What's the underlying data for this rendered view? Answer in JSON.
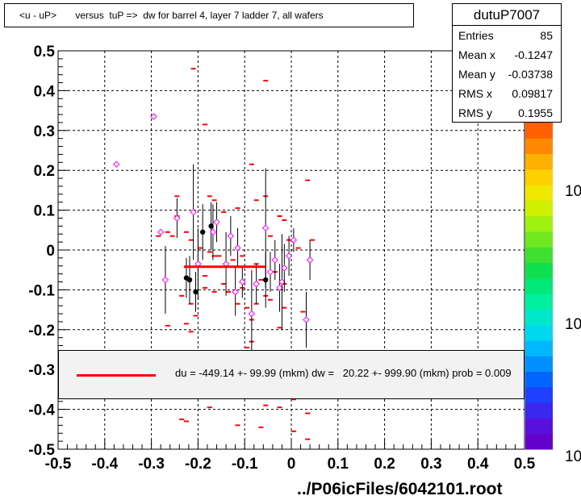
{
  "title": "<u - uP>       versus  tuP =>  dw for barrel 4, layer 7 ladder 7, all wafers",
  "stats": {
    "name": "dutuP7007",
    "rows": [
      {
        "label": "Entries",
        "value": "85"
      },
      {
        "label": "Mean x",
        "value": "-0.1247"
      },
      {
        "label": "Mean y",
        "value": "-0.03738"
      },
      {
        "label": "RMS x",
        "value": "0.09817"
      },
      {
        "label": "RMS y",
        "value": "0.1955"
      }
    ]
  },
  "fit_text": "du = -449.14 +- 99.99 (mkm) dw =   20.22 +- 999.90 (mkm) prob = 0.009",
  "footer": "../P06icFiles/6042101.root",
  "colorbar_labels": [
    "10",
    "10",
    "10"
  ],
  "chart_data": {
    "type": "scatter",
    "xlim": [
      -0.5,
      0.5
    ],
    "ylim": [
      -0.5,
      0.5
    ],
    "x_ticks": [
      "-0.5",
      "-0.4",
      "-0.3",
      "-0.2",
      "-0.1",
      "0",
      "0.1",
      "0.2",
      "0.3",
      "0.4",
      "0.5"
    ],
    "y_ticks": [
      "-0.5",
      "-0.4",
      "-0.3",
      "-0.2",
      "-0.1",
      "0",
      "0.1",
      "0.2",
      "0.3",
      "0.4",
      "0.5"
    ],
    "grid": true,
    "colors": {
      "marks": "#ff0000",
      "profile": "#ff00ff",
      "fit": "#ff0000",
      "axis": "#000000"
    },
    "fit_segment": {
      "x": [
        -0.23,
        -0.055
      ],
      "y": [
        -0.042,
        -0.042
      ]
    },
    "red_marks": [
      [
        -0.295,
        0.335
      ],
      [
        -0.245,
        0.135
      ],
      [
        -0.245,
        0.085
      ],
      [
        -0.225,
        0.045
      ],
      [
        -0.21,
        0.455
      ],
      [
        -0.185,
        0.315
      ],
      [
        -0.175,
        0.135
      ],
      [
        -0.165,
        0.125
      ],
      [
        -0.145,
        0.095
      ],
      [
        -0.115,
        0.105
      ],
      [
        -0.085,
        0.215
      ],
      [
        -0.075,
        0.125
      ],
      [
        -0.055,
        0.425
      ],
      [
        -0.055,
        0.135
      ],
      [
        -0.045,
        0.035
      ],
      [
        -0.025,
        0.085
      ],
      [
        -0.015,
        0.075
      ],
      [
        0.035,
        0.175
      ],
      [
        -0.265,
        0.045
      ],
      [
        -0.255,
        0.035
      ],
      [
        -0.285,
        0.035
      ],
      [
        -0.215,
        0.025
      ],
      [
        -0.195,
        0.005
      ],
      [
        -0.175,
        -0.005
      ],
      [
        -0.155,
        -0.015
      ],
      [
        -0.125,
        -0.025
      ],
      [
        -0.105,
        -0.015
      ],
      [
        -0.075,
        -0.035
      ],
      [
        -0.065,
        -0.075
      ],
      [
        -0.035,
        -0.055
      ],
      [
        -0.015,
        -0.085
      ],
      [
        -0.005,
        0.025
      ],
      [
        0.015,
        0.005
      ],
      [
        0.045,
        0.025
      ],
      [
        -0.235,
        -0.115
      ],
      [
        -0.215,
        -0.135
      ],
      [
        -0.205,
        -0.165
      ],
      [
        -0.225,
        -0.185
      ],
      [
        -0.185,
        -0.095
      ],
      [
        -0.165,
        -0.105
      ],
      [
        -0.145,
        -0.085
      ],
      [
        -0.135,
        -0.105
      ],
      [
        -0.115,
        -0.135
      ],
      [
        -0.105,
        -0.095
      ],
      [
        -0.095,
        -0.145
      ],
      [
        -0.085,
        -0.175
      ],
      [
        -0.075,
        -0.135
      ],
      [
        -0.055,
        -0.115
      ],
      [
        -0.045,
        -0.125
      ],
      [
        -0.025,
        -0.195
      ],
      [
        -0.015,
        -0.145
      ],
      [
        0.025,
        -0.155
      ],
      [
        -0.215,
        -0.205
      ],
      [
        -0.265,
        -0.19
      ],
      [
        -0.085,
        -0.23
      ],
      [
        -0.095,
        -0.245
      ],
      [
        -0.13,
        -0.36
      ],
      [
        -0.075,
        -0.365
      ],
      [
        0.005,
        -0.375
      ],
      [
        -0.055,
        -0.39
      ],
      [
        -0.025,
        -0.395
      ],
      [
        0.035,
        -0.41
      ],
      [
        -0.175,
        -0.395
      ],
      [
        -0.235,
        -0.425
      ],
      [
        -0.225,
        -0.43
      ],
      [
        -0.115,
        -0.44
      ],
      [
        -0.065,
        -0.445
      ],
      [
        0.005,
        -0.455
      ],
      [
        0.035,
        -0.475
      ],
      [
        -0.185,
        -0.065
      ],
      [
        -0.165,
        -0.015
      ]
    ],
    "profile_points": [
      {
        "x": -0.375,
        "y": 0.215,
        "err": 0,
        "filled": false
      },
      {
        "x": -0.295,
        "y": 0.335,
        "err": 0,
        "filled": false
      },
      {
        "x": -0.28,
        "y": 0.045,
        "err": 0,
        "filled": false
      },
      {
        "x": -0.27,
        "y": -0.075,
        "err": 0.085,
        "filled": false
      },
      {
        "x": -0.245,
        "y": 0.08,
        "err": 0.05,
        "filled": false
      },
      {
        "x": -0.225,
        "y": -0.07,
        "err": 0.05,
        "filled": true
      },
      {
        "x": -0.218,
        "y": -0.075,
        "err": 0.06,
        "filled": true
      },
      {
        "x": -0.21,
        "y": 0.095,
        "err": 0.12,
        "filled": false
      },
      {
        "x": -0.205,
        "y": -0.105,
        "err": 0.05,
        "filled": true
      },
      {
        "x": -0.2,
        "y": -0.035,
        "err": 0.09,
        "filled": false
      },
      {
        "x": -0.19,
        "y": 0.045,
        "err": 0.07,
        "filled": true
      },
      {
        "x": -0.172,
        "y": 0.06,
        "err": 0.06,
        "filled": true
      },
      {
        "x": -0.168,
        "y": 0.045,
        "err": 0.07,
        "filled": false
      },
      {
        "x": -0.16,
        "y": 0.07,
        "err": 0.05,
        "filled": false
      },
      {
        "x": -0.14,
        "y": -0.035,
        "err": 0.08,
        "filled": false
      },
      {
        "x": -0.13,
        "y": 0.035,
        "err": 0.05,
        "filled": false
      },
      {
        "x": -0.12,
        "y": -0.105,
        "err": 0.06,
        "filled": false
      },
      {
        "x": -0.115,
        "y": 0.005,
        "err": 0.05,
        "filled": false
      },
      {
        "x": -0.105,
        "y": -0.08,
        "err": 0.04,
        "filled": false
      },
      {
        "x": -0.085,
        "y": -0.16,
        "err": 0.11,
        "filled": false
      },
      {
        "x": -0.075,
        "y": -0.085,
        "err": 0.05,
        "filled": false
      },
      {
        "x": -0.055,
        "y": 0.055,
        "err": 0.15,
        "filled": false
      },
      {
        "x": -0.055,
        "y": -0.075,
        "err": 0.07,
        "filled": true
      },
      {
        "x": -0.045,
        "y": -0.055,
        "err": 0.05,
        "filled": false
      },
      {
        "x": -0.035,
        "y": -0.025,
        "err": 0.05,
        "filled": false
      },
      {
        "x": -0.025,
        "y": -0.095,
        "err": 0.06,
        "filled": false
      },
      {
        "x": -0.02,
        "y": -0.08,
        "err": 0.12,
        "filled": false
      },
      {
        "x": -0.015,
        "y": -0.045,
        "err": 0.06,
        "filled": false
      },
      {
        "x": -0.005,
        "y": -0.015,
        "err": 0.05,
        "filled": false
      },
      {
        "x": 0.005,
        "y": 0.025,
        "err": 0.03,
        "filled": false
      },
      {
        "x": 0.032,
        "y": -0.175,
        "err": 0.07,
        "filled": false
      },
      {
        "x": 0.04,
        "y": -0.025,
        "err": 0.05,
        "filled": false
      }
    ]
  }
}
